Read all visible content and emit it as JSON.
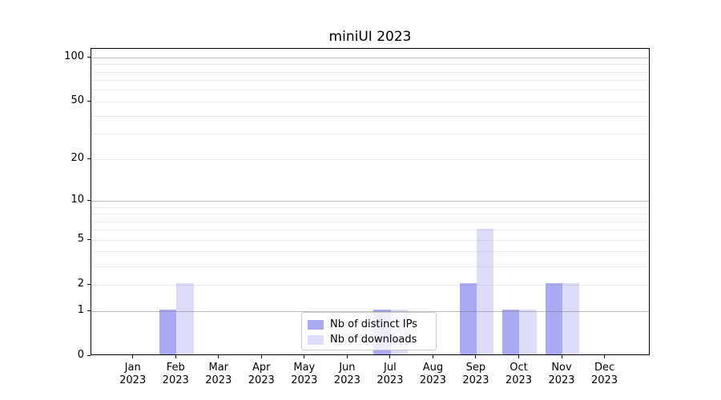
{
  "chart_data": {
    "type": "bar",
    "title": "miniUI 2023",
    "months": [
      "Jan",
      "Feb",
      "Mar",
      "Apr",
      "May",
      "Jun",
      "Jul",
      "Aug",
      "Sep",
      "Oct",
      "Nov",
      "Dec"
    ],
    "year": "2023",
    "categories": [
      "Jan 2023",
      "Feb 2023",
      "Mar 2023",
      "Apr 2023",
      "May 2023",
      "Jun 2023",
      "Jul 2023",
      "Aug 2023",
      "Sep 2023",
      "Oct 2023",
      "Nov 2023",
      "Dec 2023"
    ],
    "series": [
      {
        "name": "Nb of distinct IPs",
        "color": "#aaaaf4",
        "values": [
          0,
          1,
          0,
          0,
          0,
          0,
          1,
          0,
          2,
          1,
          2,
          0
        ]
      },
      {
        "name": "Nb of downloads",
        "color": "#dcdcf8",
        "values": [
          0,
          2,
          0,
          0,
          0,
          0,
          1,
          0,
          6,
          1,
          2,
          0
        ]
      }
    ],
    "y_axis": {
      "scale": "log10(1+value)",
      "labeled_ticks": [
        0,
        1,
        2,
        5,
        10,
        20,
        50,
        100
      ],
      "major_gridlines": [
        1,
        10,
        100
      ],
      "minor_gridlines": [
        2,
        3,
        4,
        5,
        6,
        7,
        8,
        9,
        20,
        30,
        40,
        50,
        60,
        70,
        80,
        90
      ],
      "ylim_bottom": 0
    },
    "x_axis": {
      "tick_label_format": "Month over Year, two lines"
    },
    "legend": {
      "location": "lower center of plot",
      "frame": true
    },
    "grid": "horizontal only, drawn above bars",
    "colors": {
      "axis_spines": "#000000",
      "background": "#ffffff"
    }
  }
}
